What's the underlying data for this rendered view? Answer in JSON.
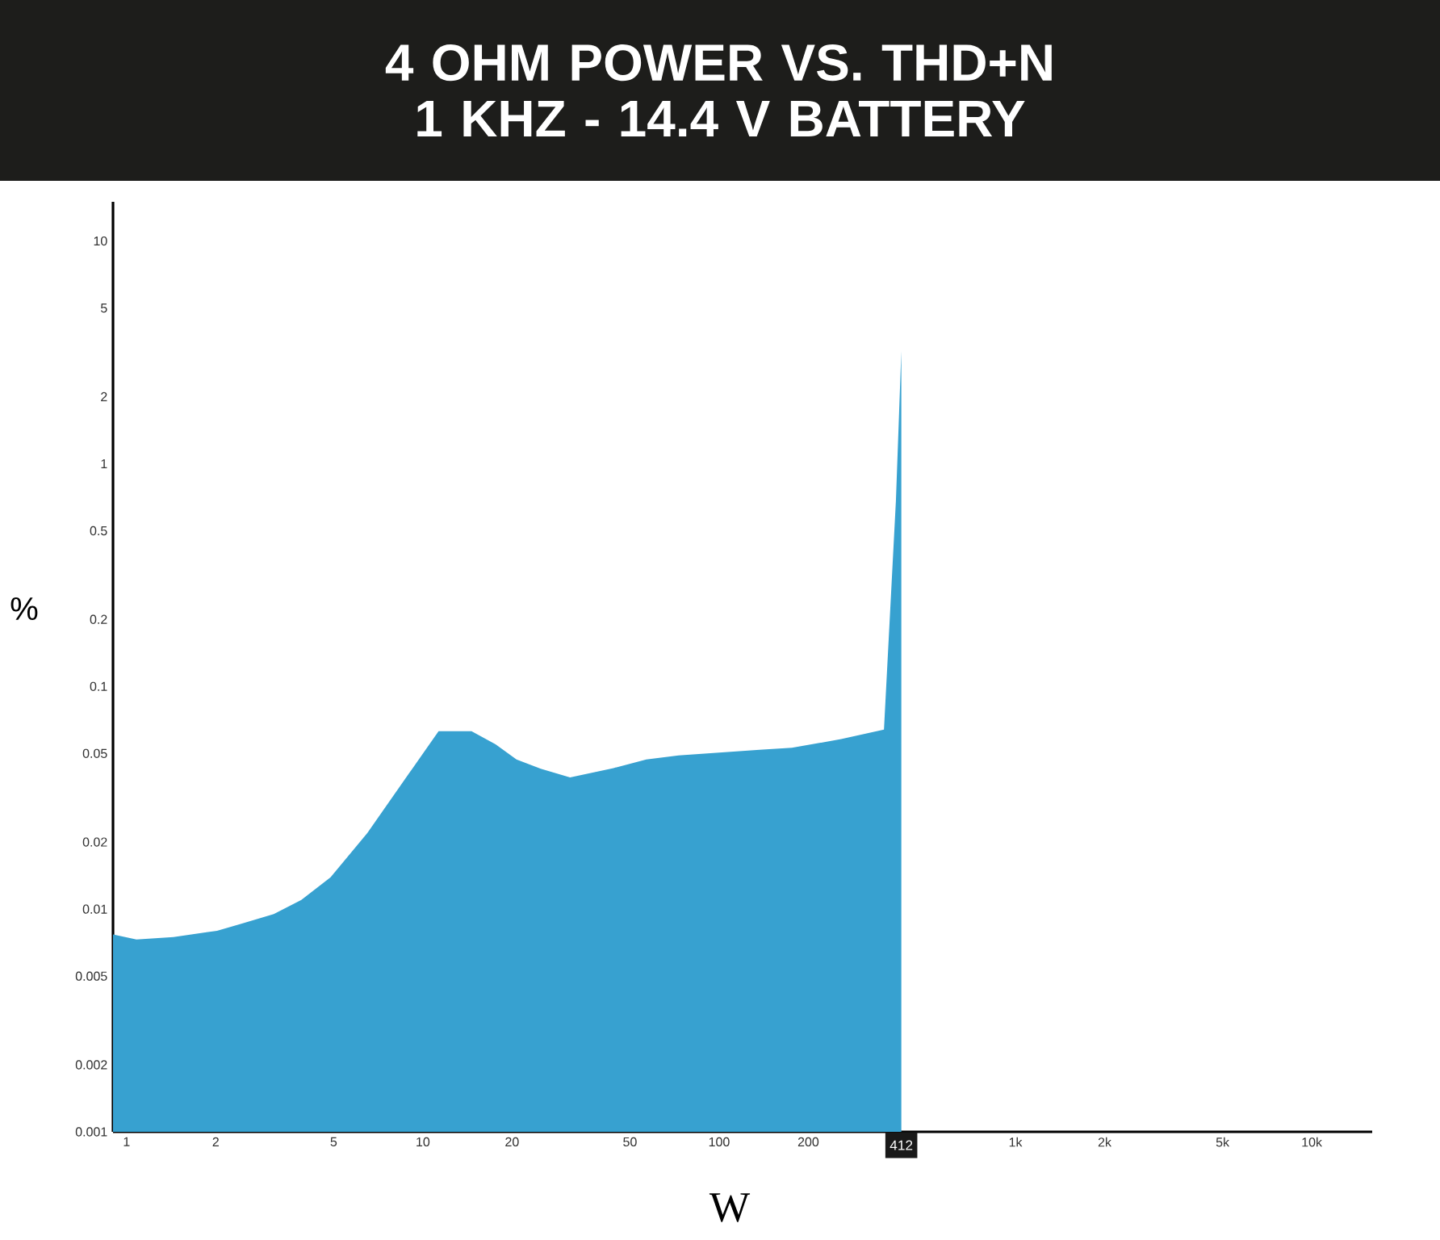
{
  "chart_data": {
    "type": "area",
    "title": "4 OHM POWER VS. THD+N 1 KHZ - 14.4 V BATTERY",
    "xlabel": "W",
    "ylabel": "%",
    "color": "#37a1d0",
    "log": "xy",
    "xlim": [
      0.9,
      16000
    ],
    "ylim": [
      0.001,
      15
    ],
    "xticks": [
      1,
      2,
      5,
      10,
      20,
      50,
      100,
      200,
      {
        "value": 1000,
        "label": "1k"
      },
      {
        "value": 2000,
        "label": "2k"
      },
      {
        "value": 5000,
        "label": "5k"
      },
      {
        "value": 10000,
        "label": "10k"
      }
    ],
    "yticks": [
      0.001,
      0.002,
      0.005,
      0.01,
      0.02,
      0.05,
      0.1,
      0.2,
      0.5,
      1,
      2,
      5,
      10
    ],
    "x": [
      0.9,
      1.08,
      1.44,
      2.02,
      2.44,
      3.14,
      3.89,
      4.88,
      6.5,
      11.3,
      14.6,
      17.6,
      20.7,
      25,
      31.4,
      44,
      56.8,
      73,
      137,
      176,
      258,
      360,
      395,
      412
    ],
    "values": [
      0.0077,
      0.0073,
      0.0075,
      0.008,
      0.0086,
      0.0095,
      0.011,
      0.0139,
      0.022,
      0.063,
      0.063,
      0.055,
      0.047,
      0.0427,
      0.039,
      0.043,
      0.047,
      0.049,
      0.052,
      0.053,
      0.058,
      0.064,
      0.68,
      3.2
    ],
    "annotations": [
      "412"
    ]
  }
}
